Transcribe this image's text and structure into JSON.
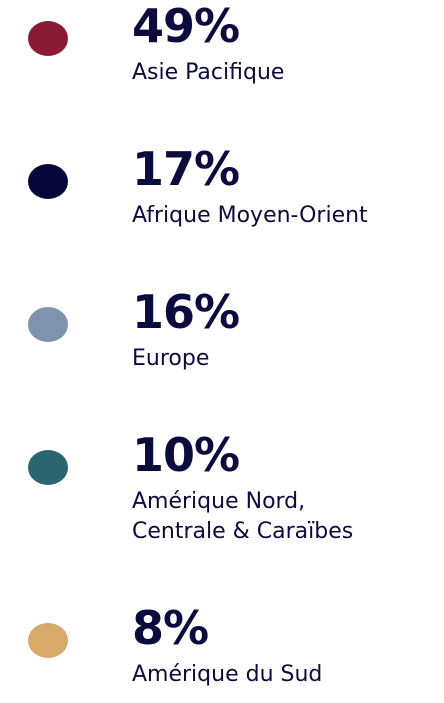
{
  "items": [
    {
      "value_label": "49%",
      "label": [
        "Asie Pacifique"
      ],
      "color": "#8b1a34"
    },
    {
      "value_label": "17%",
      "label": [
        "Afrique Moyen-Orient"
      ],
      "color": "#06063a"
    },
    {
      "value_label": "16%",
      "label": [
        "Europe"
      ],
      "color": "#7f93ae"
    },
    {
      "value_label": "10%",
      "label": [
        "Amérique Nord,",
        "Centrale & Caraïbes"
      ],
      "color": "#2b6670"
    },
    {
      "value_label": "8%",
      "label": [
        "Amérique du Sud"
      ],
      "color": "#d7aa6a"
    }
  ]
}
